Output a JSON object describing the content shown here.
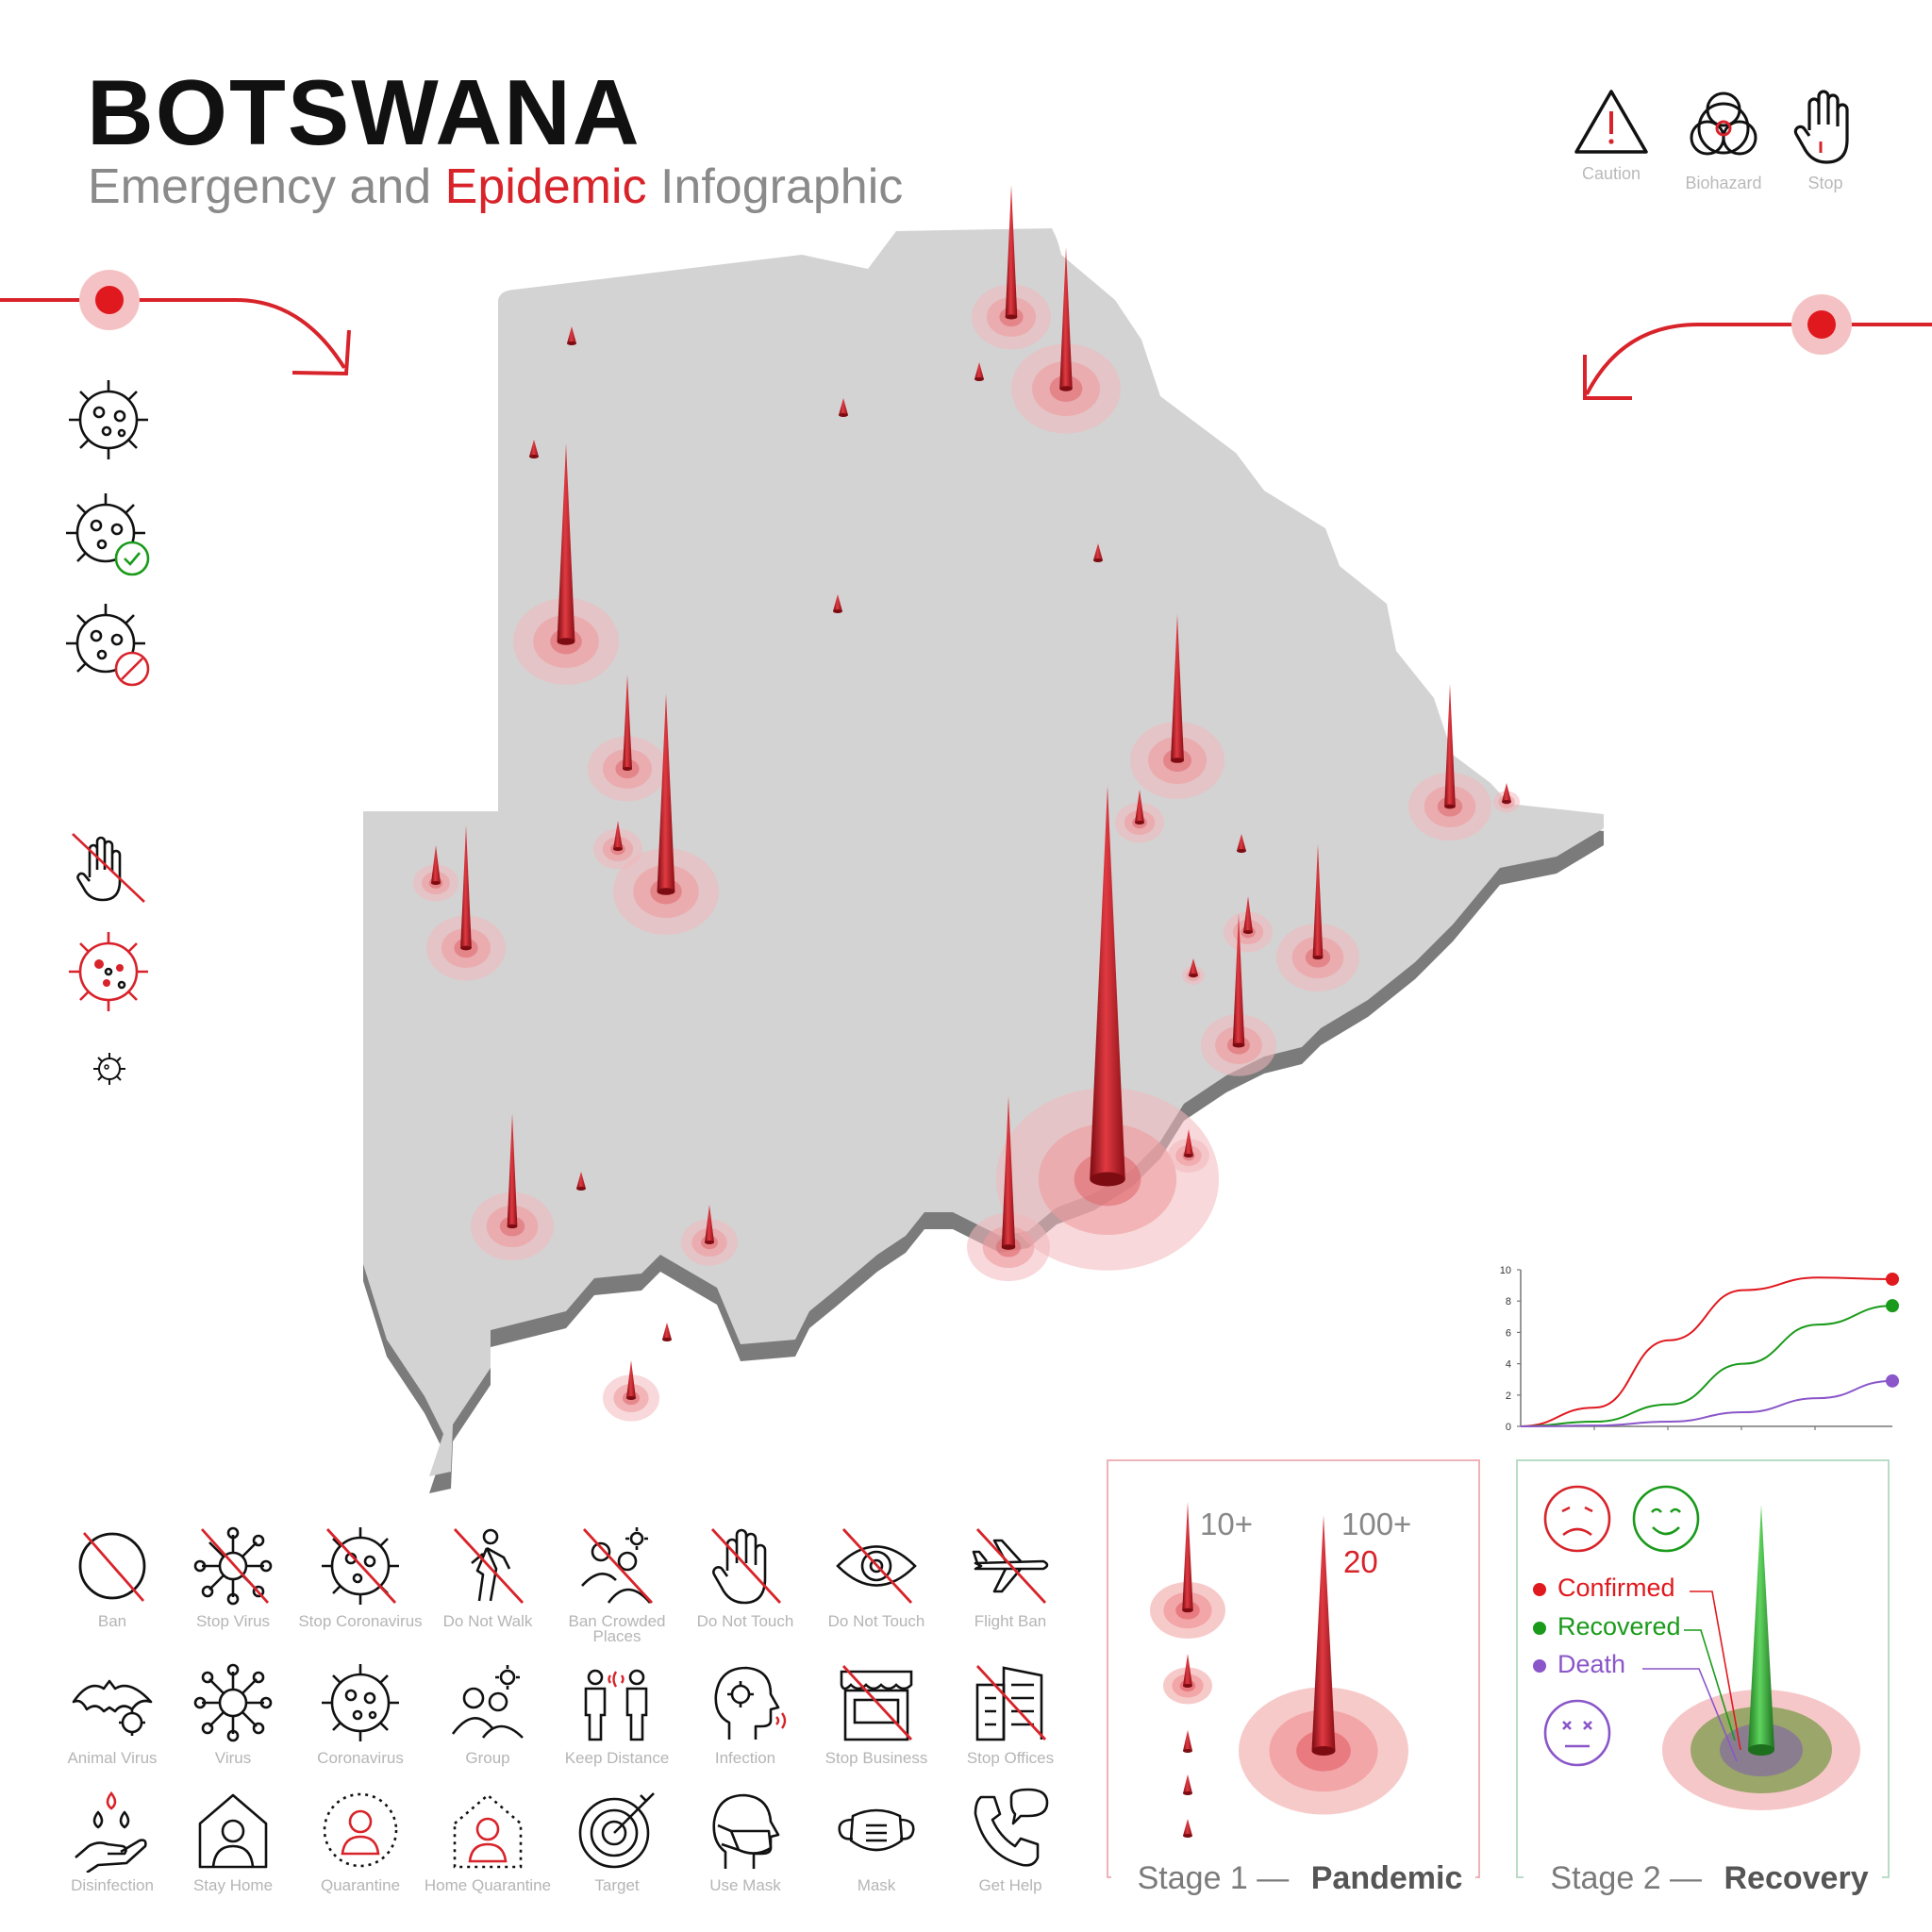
{
  "header": {
    "title": "BOTSWANA",
    "subtitle_pre": "Emergency and ",
    "subtitle_accent": "Epidemic",
    "subtitle_post": " Infographic"
  },
  "hazard_icons": [
    {
      "label": "Caution",
      "icon": "caution-icon"
    },
    {
      "label": "Biohazard",
      "icon": "biohazard-icon"
    },
    {
      "label": "Stop",
      "icon": "stop-hand-icon"
    }
  ],
  "icon_grid": [
    {
      "label": "Ban",
      "icon": "ban-icon"
    },
    {
      "label": "Stop Virus",
      "icon": "stop-virus-icon"
    },
    {
      "label": "Stop Coronavirus",
      "icon": "stop-coronavirus-icon"
    },
    {
      "label": "Do Not Walk",
      "icon": "do-not-walk-icon"
    },
    {
      "label": "Ban Crowded Places",
      "icon": "ban-crowded-places-icon"
    },
    {
      "label": "Do Not Touch",
      "icon": "do-not-touch-hand-icon"
    },
    {
      "label": "Do Not Touch",
      "icon": "do-not-touch-eye-icon"
    },
    {
      "label": "Flight Ban",
      "icon": "flight-ban-icon"
    },
    {
      "label": "Animal Virus",
      "icon": "animal-virus-icon"
    },
    {
      "label": "Virus",
      "icon": "virus-icon"
    },
    {
      "label": "Coronavirus",
      "icon": "coronavirus-icon"
    },
    {
      "label": "Group",
      "icon": "group-icon"
    },
    {
      "label": "Keep Distance",
      "icon": "keep-distance-icon"
    },
    {
      "label": "Infection",
      "icon": "infection-icon"
    },
    {
      "label": "Stop Business",
      "icon": "stop-business-icon"
    },
    {
      "label": "Stop Offices",
      "icon": "stop-offices-icon"
    },
    {
      "label": "Disinfection",
      "icon": "disinfection-icon"
    },
    {
      "label": "Stay Home",
      "icon": "stay-home-icon"
    },
    {
      "label": "Quarantine",
      "icon": "quarantine-icon"
    },
    {
      "label": "Home Quarantine",
      "icon": "home-quarantine-icon"
    },
    {
      "label": "Target",
      "icon": "target-icon"
    },
    {
      "label": "Use Mask",
      "icon": "use-mask-icon"
    },
    {
      "label": "Mask",
      "icon": "mask-icon"
    },
    {
      "label": "Get Help",
      "icon": "get-help-icon"
    }
  ],
  "stage1": {
    "title_pre": "Stage 1 — ",
    "title_bold": "Pandemic",
    "label_small": "10+",
    "label_large": "100+",
    "label_count": "20"
  },
  "stage2": {
    "title_pre": "Stage 2 — ",
    "title_bold": "Recovery",
    "legend": [
      {
        "label": "Confirmed",
        "color": "#e0191f"
      },
      {
        "label": "Recovered",
        "color": "#1a9a1a"
      },
      {
        "label": "Death",
        "color": "#8a56c9"
      }
    ]
  },
  "colors": {
    "accent": "#d8232a",
    "recovered": "#1a9a1a",
    "death": "#8a56c9",
    "map": "#d3d3d3"
  },
  "chart_data": {
    "type": "line",
    "ylim": [
      0,
      10
    ],
    "yticks": [
      "0",
      "2",
      "4",
      "6",
      "8",
      "10"
    ],
    "x": [
      0,
      1,
      2,
      3,
      4,
      5
    ],
    "series": [
      {
        "values": [
          0,
          1.2,
          5.5,
          8.7,
          9.5,
          9.4
        ],
        "color": "#e0191f"
      },
      {
        "values": [
          0,
          0.3,
          1.4,
          4.0,
          6.5,
          7.7
        ],
        "color": "#1a9a1a"
      },
      {
        "values": [
          0,
          0.05,
          0.3,
          0.9,
          1.8,
          2.9
        ],
        "color": "#8a56c9"
      }
    ]
  }
}
